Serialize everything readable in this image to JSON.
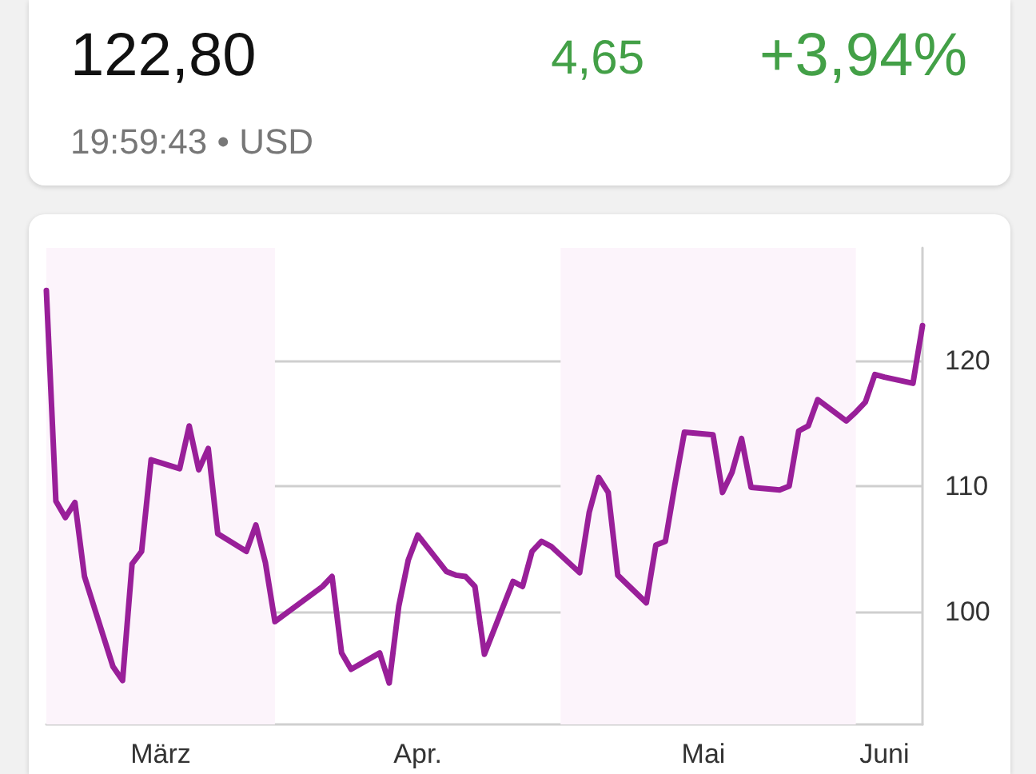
{
  "chart_data": {
    "type": "line",
    "title": "122,80",
    "annotations": [
      "4,65",
      "+3,94%",
      "19:59:43 • USD"
    ],
    "x": [
      "--03-08",
      "--03-09",
      "--03-10",
      "--03-11",
      "--03-12",
      "--03-15",
      "--03-16",
      "--03-17",
      "--03-18",
      "--03-19",
      "--03-22",
      "--03-23",
      "--03-24",
      "--03-25",
      "--03-26",
      "--03-29",
      "--03-30",
      "--03-31",
      "--04-01",
      "--04-06",
      "--04-07",
      "--04-08",
      "--04-09",
      "--04-12",
      "--04-13",
      "--04-14",
      "--04-15",
      "--04-16",
      "--04-19",
      "--04-20",
      "--04-21",
      "--04-22",
      "--04-23",
      "--04-26",
      "--04-27",
      "--04-28",
      "--04-29",
      "--04-30",
      "--05-03",
      "--05-04",
      "--05-05",
      "--05-06",
      "--05-07",
      "--05-10",
      "--05-11",
      "--05-12",
      "--05-13",
      "--05-14",
      "--05-17",
      "--05-18",
      "--05-19",
      "--05-20",
      "--05-21",
      "--05-24",
      "--05-25",
      "--05-26",
      "--05-27",
      "--05-28",
      "--05-31",
      "--06-01",
      "--06-02",
      "--06-03",
      "--06-04",
      "--06-07",
      "--06-08"
    ],
    "series": [
      {
        "color": "#991f99",
        "values": [
          125.6,
          108.8,
          107.5,
          108.7,
          102.8,
          95.6,
          94.5,
          103.8,
          104.8,
          112.1,
          111.4,
          114.8,
          111.3,
          113.0,
          106.2,
          104.8,
          106.9,
          103.9,
          99.2,
          102.0,
          102.8,
          96.7,
          95.4,
          96.7,
          94.3,
          100.4,
          104.1,
          106.1,
          103.2,
          102.9,
          102.8,
          102.0,
          96.6,
          102.4,
          102.0,
          104.8,
          105.6,
          105.2,
          103.1,
          107.9,
          110.7,
          109.5,
          102.9,
          100.7,
          105.3,
          105.6,
          110.1,
          114.3,
          114.1,
          109.5,
          111.1,
          113.8,
          109.9,
          109.7,
          110.0,
          114.4,
          114.8,
          116.9,
          115.2,
          115.9,
          116.7,
          118.9,
          118.7,
          118.2,
          122.8
        ]
      }
    ],
    "xlim": [
      "--03-08",
      "--06-08"
    ],
    "xticks": [
      {
        "value": "--03-20",
        "label": "März"
      },
      {
        "value": "--04-16",
        "label": "Apr."
      },
      {
        "value": "--05-16",
        "label": "Mai"
      },
      {
        "value": "--06-04",
        "label": "Juni"
      }
    ],
    "ylim": [
      91,
      129
    ],
    "yticks": [
      100,
      110,
      120
    ],
    "grid": "y",
    "marker": "none",
    "line_style": "solid",
    "bands": [
      {
        "axis": "x",
        "from": "--03-08",
        "to": "--04-01",
        "color": "#fcf4fb"
      },
      {
        "axis": "x",
        "from": "--05-01",
        "to": "--06-01",
        "color": "#fcf4fb"
      }
    ]
  }
}
